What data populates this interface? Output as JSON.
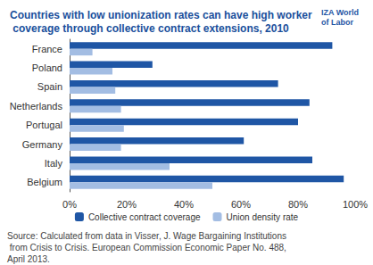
{
  "chart_data": {
    "type": "bar",
    "orientation": "horizontal",
    "title": "Countries with low unionization rates can have high worker coverage through collective contract extensions, 2010",
    "annotations": [
      "Source: Calculated from data in Visser, J. Wage Bargaining Institutions from Crisis to Crisis. European Commission Economic Paper No. 488, April 2013.",
      "IZA World of Labor"
    ],
    "categories": [
      "France",
      "Poland",
      "Spain",
      "Netherlands",
      "Portugal",
      "Germany",
      "Italy",
      "Belgium"
    ],
    "series": [
      {
        "name": "Collective contract coverage",
        "color": "#1f56a5",
        "values": [
          92,
          29,
          73,
          84,
          80,
          61,
          85,
          96
        ]
      },
      {
        "name": "Union density rate",
        "color": "#a3bde3",
        "values": [
          8,
          15,
          16,
          18,
          19,
          18,
          35,
          50
        ]
      }
    ],
    "xlim": [
      0,
      100
    ],
    "xticks": [
      {
        "value": 0,
        "label": "0%"
      },
      {
        "value": 20,
        "label": "20%"
      },
      {
        "value": 40,
        "label": "40%"
      },
      {
        "value": 60,
        "label": "60%"
      },
      {
        "value": 80,
        "label": "80%"
      },
      {
        "value": 100,
        "label": "100%"
      }
    ],
    "grid": false,
    "legend": "bottom"
  }
}
